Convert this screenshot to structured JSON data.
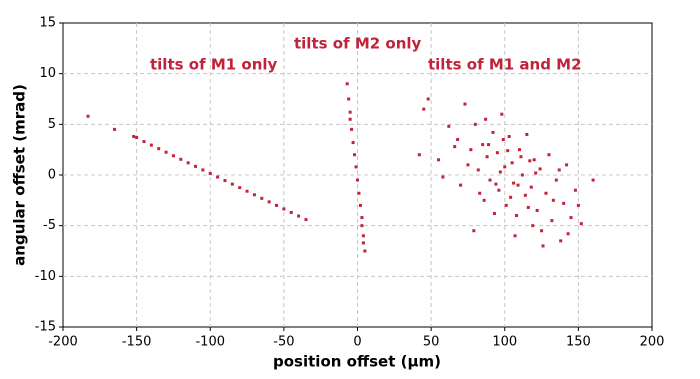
{
  "chart_data": {
    "type": "scatter",
    "xlabel": "position offset (μm)",
    "ylabel": "angular offset (mrad)",
    "annotations": [
      "tilts of M1 only",
      "tilts of M2 only",
      "tilts of M1 and M2"
    ],
    "xlim": [
      -200,
      200
    ],
    "xticks": [
      -200,
      -150,
      -100,
      -50,
      0,
      50,
      100,
      150,
      200
    ],
    "ylim": [
      -15,
      15
    ],
    "yticks": [
      -15,
      -10,
      -5,
      0,
      5,
      10,
      15
    ],
    "grid": true,
    "series": [
      {
        "color": "#c0233a",
        "x": [
          -183,
          -165,
          -152,
          -150,
          -145,
          -140,
          -135,
          -130,
          -125,
          -120,
          -115,
          -110,
          -105,
          -100,
          -95,
          -90,
          -85,
          -80,
          -75,
          -70,
          -65,
          -60,
          -55,
          -50,
          -45,
          -40,
          -35
        ],
        "values": [
          5.8,
          4.5,
          3.8,
          3.7,
          3.3,
          2.95,
          2.6,
          2.25,
          1.9,
          1.55,
          1.2,
          0.85,
          0.5,
          0.15,
          -0.2,
          -0.55,
          -0.9,
          -1.25,
          -1.6,
          -1.95,
          -2.3,
          -2.65,
          -3.0,
          -3.35,
          -3.7,
          -4.05,
          -4.4
        ]
      },
      {
        "color": "#c0233a",
        "x": [
          -7,
          -6,
          -5,
          -5,
          -4,
          -3,
          -2,
          -1,
          0,
          1,
          2,
          3,
          3,
          4,
          4,
          5
        ],
        "values": [
          9,
          7.5,
          6.2,
          5.5,
          4.5,
          3.2,
          2,
          0.8,
          -0.5,
          -1.8,
          -3,
          -4.2,
          -5,
          -6,
          -6.7,
          -7.5
        ]
      },
      {
        "color": "#c0233a",
        "x": [
          45,
          48,
          55,
          62,
          68,
          70,
          73,
          77,
          80,
          82,
          85,
          86,
          88,
          90,
          92,
          95,
          96,
          98,
          100,
          101,
          103,
          105,
          106,
          108,
          110,
          112,
          114,
          115,
          118,
          120,
          122,
          124,
          125,
          128,
          130,
          132,
          135,
          138,
          140,
          142,
          145,
          148,
          150,
          160,
          42,
          58,
          66,
          75,
          83,
          87,
          93,
          97,
          99,
          104,
          107,
          111,
          116,
          119,
          121,
          126,
          133,
          137,
          143,
          152,
          79,
          89,
          94,
          102,
          109,
          117
        ],
        "values": [
          6.5,
          7.5,
          1.5,
          4.8,
          3.5,
          -1.0,
          7.0,
          2.5,
          5.0,
          0.5,
          3.0,
          -2.5,
          1.8,
          -0.5,
          4.2,
          2.2,
          -1.5,
          6.0,
          0.8,
          -3.0,
          3.8,
          1.2,
          -0.8,
          -4.0,
          2.5,
          0.0,
          -2.0,
          4.0,
          -1.2,
          1.5,
          -3.5,
          0.6,
          -5.5,
          -1.8,
          2.0,
          -4.5,
          -0.5,
          -6.5,
          -2.8,
          1.0,
          -4.2,
          -1.5,
          -3.0,
          -0.5,
          2.0,
          -0.2,
          2.8,
          1.0,
          -1.8,
          5.5,
          -3.8,
          0.3,
          3.5,
          -2.2,
          -6.0,
          1.8,
          -3.2,
          -5.0,
          0.2,
          -7.0,
          -2.5,
          0.5,
          -5.8,
          -4.8,
          -5.5,
          3.0,
          -0.9,
          2.4,
          -1.0,
          1.4
        ]
      }
    ]
  }
}
